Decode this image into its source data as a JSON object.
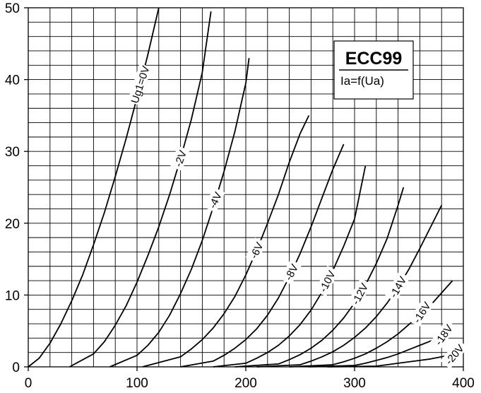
{
  "chart_data": {
    "type": "line",
    "title": "ECC99",
    "subtitle": "Ia=f(Ua)",
    "xlim": [
      0,
      400
    ],
    "ylim": [
      0,
      50
    ],
    "x_ticks": [
      0,
      100,
      200,
      300,
      400
    ],
    "y_ticks": [
      0,
      10,
      20,
      30,
      40,
      50
    ],
    "grid": true,
    "grid_x_step": 20,
    "grid_y_step": 2,
    "legend_position": "top-right",
    "series": [
      {
        "name": "Ug1=0V",
        "x": [
          0,
          10,
          20,
          30,
          40,
          50,
          60,
          70,
          80,
          90,
          100,
          110,
          120
        ],
        "y": [
          0,
          1.2,
          3.3,
          6.0,
          9.2,
          12.8,
          17.0,
          21.5,
          26.5,
          31.8,
          37.5,
          43.5,
          50.0
        ]
      },
      {
        "name": "-2V",
        "x": [
          38,
          60,
          70,
          80,
          90,
          100,
          110,
          120,
          130,
          140,
          150,
          160,
          168
        ],
        "y": [
          0,
          1.8,
          3.5,
          5.8,
          8.5,
          11.8,
          15.5,
          19.5,
          24.0,
          29.0,
          34.5,
          41.0,
          49.5
        ]
      },
      {
        "name": "-4V",
        "x": [
          75,
          100,
          110,
          120,
          130,
          140,
          150,
          160,
          170,
          180,
          190,
          200,
          203
        ],
        "y": [
          0,
          1.6,
          3.0,
          4.8,
          7.2,
          10.2,
          13.6,
          17.6,
          22.2,
          27.2,
          32.8,
          39.5,
          43.0
        ]
      },
      {
        "name": "-6V",
        "x": [
          105,
          140,
          150,
          160,
          170,
          180,
          190,
          200,
          210,
          220,
          230,
          240,
          250,
          258
        ],
        "y": [
          0,
          1.4,
          2.5,
          3.8,
          5.4,
          7.4,
          9.8,
          12.8,
          16.2,
          20.0,
          24.0,
          28.5,
          32.5,
          35.0
        ]
      },
      {
        "name": "-8V",
        "x": [
          140,
          170,
          180,
          190,
          200,
          210,
          220,
          230,
          240,
          250,
          260,
          270,
          280,
          290
        ],
        "y": [
          0,
          0.8,
          1.6,
          2.6,
          3.8,
          5.3,
          7.2,
          9.6,
          12.5,
          15.8,
          19.5,
          23.5,
          27.5,
          31.0
        ]
      },
      {
        "name": "-10V",
        "x": [
          170,
          200,
          210,
          220,
          230,
          240,
          250,
          260,
          270,
          280,
          290,
          300,
          310
        ],
        "y": [
          0,
          0.5,
          1.2,
          2.0,
          3.0,
          4.3,
          5.9,
          7.9,
          10.4,
          13.4,
          16.8,
          20.6,
          28.0
        ]
      },
      {
        "name": "-12V",
        "x": [
          190,
          230,
          240,
          250,
          260,
          270,
          280,
          290,
          300,
          310,
          320,
          330,
          340,
          345
        ],
        "y": [
          0,
          0.4,
          1.0,
          1.7,
          2.6,
          3.7,
          5.1,
          6.8,
          8.9,
          11.4,
          14.4,
          17.9,
          22.5,
          25.0
        ]
      },
      {
        "name": "-14V",
        "x": [
          210,
          250,
          260,
          270,
          280,
          290,
          300,
          310,
          320,
          330,
          340,
          350,
          360,
          370,
          380
        ],
        "y": [
          0,
          0.3,
          0.8,
          1.4,
          2.1,
          3.0,
          4.1,
          5.4,
          7.0,
          8.9,
          11.1,
          13.6,
          16.5,
          19.5,
          22.5
        ]
      },
      {
        "name": "-16V",
        "x": [
          240,
          280,
          290,
          300,
          310,
          320,
          330,
          340,
          350,
          360,
          370,
          380,
          390
        ],
        "y": [
          0,
          0.3,
          0.7,
          1.2,
          1.8,
          2.6,
          3.5,
          4.6,
          5.9,
          7.3,
          8.6,
          10.3,
          12.0
        ]
      },
      {
        "name": "-18V",
        "x": [
          258,
          300,
          310,
          320,
          330,
          340,
          350,
          360,
          370,
          380,
          390
        ],
        "y": [
          0,
          0.2,
          0.5,
          0.9,
          1.3,
          1.8,
          2.4,
          3.0,
          3.6,
          4.3,
          5.0
        ]
      },
      {
        "name": "-20V",
        "x": [
          275,
          320,
          330,
          340,
          350,
          360,
          370,
          380,
          390
        ],
        "y": [
          0,
          0.1,
          0.3,
          0.5,
          0.7,
          0.9,
          1.1,
          1.4,
          1.7
        ]
      }
    ],
    "curve_label_positions": [
      {
        "at_x": 103,
        "rotate": -72
      },
      {
        "at_x": 140,
        "rotate": -70
      },
      {
        "at_x": 172,
        "rotate": -65
      },
      {
        "at_x": 210,
        "rotate": -64
      },
      {
        "at_x": 242,
        "rotate": -62
      },
      {
        "at_x": 275,
        "rotate": -63
      },
      {
        "at_x": 305,
        "rotate": -62
      },
      {
        "at_x": 340,
        "rotate": -60
      },
      {
        "at_x": 362,
        "rotate": -57
      },
      {
        "at_x": 382,
        "rotate": -55
      },
      {
        "at_x": 392,
        "rotate": -50
      }
    ]
  }
}
